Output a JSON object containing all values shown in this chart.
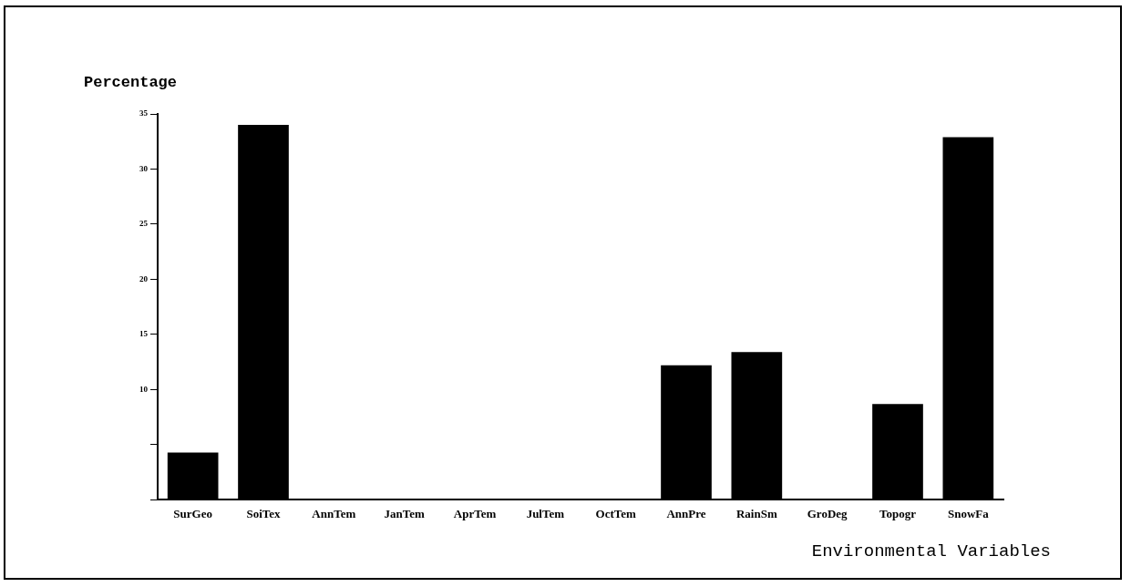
{
  "chart_data": {
    "type": "bar",
    "ylabel": "Percentage",
    "xlabel": "Environmental Variables",
    "categories": [
      "SurGeo",
      "SoiTex",
      "AnnTem",
      "JanTem",
      "AprTem",
      "JulTem",
      "OctTem",
      "AnnPre",
      "RainSm",
      "GroDeg",
      "Topogr",
      "SnowFa"
    ],
    "values": [
      4.3,
      34.0,
      0,
      0,
      0,
      0,
      0,
      12.2,
      13.4,
      0,
      8.7,
      32.9
    ],
    "color": "#000000",
    "ylim": [
      0,
      35
    ],
    "yticks": [
      {
        "value": 0,
        "label": null
      },
      {
        "value": 5,
        "label": null
      },
      10,
      15,
      20,
      25,
      30,
      35
    ],
    "grid": false,
    "legend": false
  }
}
